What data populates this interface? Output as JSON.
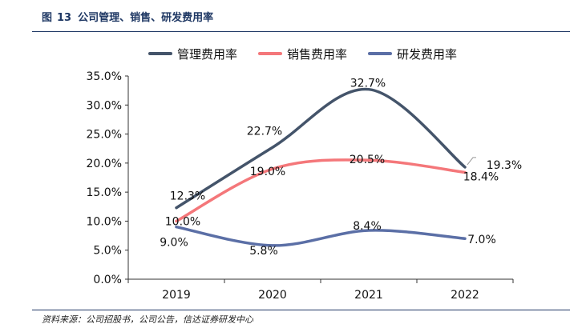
{
  "figure": {
    "label": "图",
    "number": "13",
    "title": "公司管理、销售、研发费用率",
    "source": "资料来源：公司招股书，公司公告，信达证券研发中心"
  },
  "colors": {
    "rule": "#1f3864",
    "axis": "#333333",
    "text": "#111111"
  },
  "chart_data": {
    "type": "line",
    "categories": [
      "2019",
      "2020",
      "2021",
      "2022"
    ],
    "ylim": [
      0,
      35
    ],
    "yticks": [
      "0.0%",
      "5.0%",
      "10.0%",
      "15.0%",
      "20.0%",
      "25.0%",
      "30.0%",
      "35.0%"
    ],
    "grid": false,
    "legend": "top",
    "smooth": true,
    "series": [
      {
        "name": "管理费用率",
        "color": "#44546a",
        "values": [
          12.3,
          22.7,
          32.7,
          19.3
        ],
        "labels": [
          "12.3%",
          "22.7%",
          "32.7%",
          "19.3%"
        ]
      },
      {
        "name": "销售费用率",
        "color": "#f4777a",
        "values": [
          10.0,
          19.0,
          20.5,
          18.4
        ],
        "labels": [
          "10.0%",
          "19.0%",
          "20.5%",
          "18.4%"
        ]
      },
      {
        "name": "研发费用率",
        "color": "#5b6fa6",
        "values": [
          9.0,
          5.8,
          8.4,
          7.0
        ],
        "labels": [
          "9.0%",
          "5.8%",
          "8.4%",
          "7.0%"
        ]
      }
    ]
  }
}
